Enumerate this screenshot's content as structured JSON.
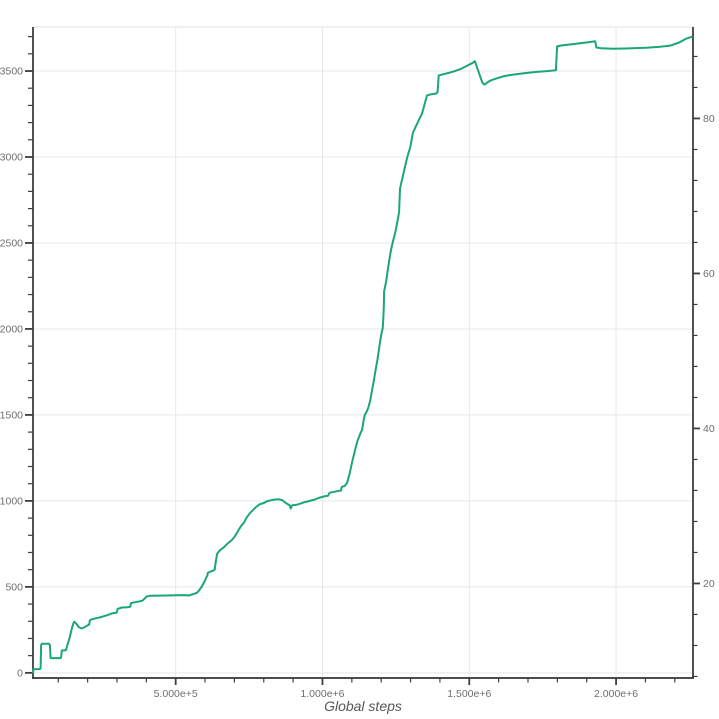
{
  "chart_data": {
    "type": "line",
    "title": "",
    "xlabel": "Global steps",
    "legend": "none",
    "grid": "major-on",
    "colors": {
      "line": "#1aa679",
      "grid": "#e8e8e8",
      "plot_border_top": "#e2e2e2",
      "axis": "#333333",
      "tick": "#3d3d3d",
      "tick_label": "#6e6e6e",
      "axis_title": "#565656",
      "background": "#ffffff"
    },
    "x_axis": {
      "range": [
        14000,
        2262000
      ],
      "major_ticks": [
        500000,
        1000000,
        1500000,
        2000000
      ],
      "major_tick_labels": [
        "5.000e+5",
        "1.000e+6",
        "1.500e+6",
        "2.000e+6"
      ],
      "minor_tick_interval": 100000
    },
    "y_axis_left": {
      "range": [
        -30,
        3756
      ],
      "major_ticks": [
        0,
        500,
        1000,
        1500,
        2000,
        2500,
        3000,
        3500
      ],
      "major_tick_labels": [
        "0",
        "500",
        "1000",
        "1500",
        "2000",
        "2500",
        "3000",
        "3500"
      ],
      "minor_tick_interval": 100,
      "gridlines": true
    },
    "y_axis_right": {
      "range": [
        7.8,
        91.8
      ],
      "major_ticks": [
        20,
        40,
        60,
        80
      ],
      "major_tick_labels": [
        "20",
        "40",
        "60",
        "80"
      ],
      "minor_tick_interval": 4,
      "gridlines": false
    },
    "series": [
      {
        "axis": "left",
        "color": "#1aa679",
        "points": [
          [
            14000,
            2
          ],
          [
            16000,
            22
          ],
          [
            37000,
            22
          ],
          [
            40000,
            28
          ],
          [
            41500,
            160
          ],
          [
            44000,
            169
          ],
          [
            69000,
            169
          ],
          [
            71500,
            160
          ],
          [
            74000,
            86
          ],
          [
            108000,
            86
          ],
          [
            110000,
            95
          ],
          [
            112000,
            130
          ],
          [
            126000,
            131
          ],
          [
            132000,
            165
          ],
          [
            139000,
            205
          ],
          [
            147000,
            262
          ],
          [
            152000,
            290
          ],
          [
            155000,
            298
          ],
          [
            162000,
            284
          ],
          [
            170000,
            266
          ],
          [
            180000,
            258
          ],
          [
            190000,
            266
          ],
          [
            200000,
            276
          ],
          [
            205000,
            280
          ],
          [
            208000,
            308
          ],
          [
            222000,
            315
          ],
          [
            236000,
            320
          ],
          [
            251000,
            327
          ],
          [
            268000,
            336
          ],
          [
            285000,
            347
          ],
          [
            299000,
            350
          ],
          [
            302000,
            372
          ],
          [
            317000,
            380
          ],
          [
            336000,
            382
          ],
          [
            345000,
            384
          ],
          [
            347500,
            405
          ],
          [
            362000,
            411
          ],
          [
            386000,
            419
          ],
          [
            394000,
            432
          ],
          [
            401000,
            444
          ],
          [
            411000,
            448
          ],
          [
            445000,
            449
          ],
          [
            470000,
            450
          ],
          [
            500000,
            451
          ],
          [
            531000,
            452
          ],
          [
            545000,
            450
          ],
          [
            557000,
            457
          ],
          [
            572000,
            465
          ],
          [
            580000,
            480
          ],
          [
            589000,
            502
          ],
          [
            598000,
            532
          ],
          [
            606000,
            560
          ],
          [
            608000,
            566
          ],
          [
            609500,
            581
          ],
          [
            620000,
            590
          ],
          [
            633000,
            599
          ],
          [
            636000,
            640
          ],
          [
            641000,
            692
          ],
          [
            652000,
            715
          ],
          [
            664000,
            730
          ],
          [
            677000,
            753
          ],
          [
            690000,
            770
          ],
          [
            700000,
            790
          ],
          [
            708000,
            812
          ],
          [
            714000,
            830
          ],
          [
            722000,
            852
          ],
          [
            733000,
            875
          ],
          [
            740000,
            898
          ],
          [
            752000,
            928
          ],
          [
            764000,
            948
          ],
          [
            775000,
            966
          ],
          [
            786000,
            980
          ],
          [
            800000,
            988
          ],
          [
            812000,
            998
          ],
          [
            830000,
            1006
          ],
          [
            848000,
            1010
          ],
          [
            862000,
            1005
          ],
          [
            875000,
            988
          ],
          [
            888000,
            975
          ],
          [
            892000,
            956
          ],
          [
            896000,
            974
          ],
          [
            912000,
            977
          ],
          [
            925000,
            984
          ],
          [
            940000,
            993
          ],
          [
            957000,
            1000
          ],
          [
            974000,
            1008
          ],
          [
            991000,
            1019
          ],
          [
            1008000,
            1027
          ],
          [
            1019000,
            1030
          ],
          [
            1024000,
            1047
          ],
          [
            1040000,
            1053
          ],
          [
            1058000,
            1059
          ],
          [
            1063000,
            1060
          ],
          [
            1066000,
            1082
          ],
          [
            1076000,
            1087
          ],
          [
            1084000,
            1105
          ],
          [
            1092000,
            1155
          ],
          [
            1101000,
            1225
          ],
          [
            1110000,
            1290
          ],
          [
            1119000,
            1348
          ],
          [
            1129000,
            1393
          ],
          [
            1135000,
            1413
          ],
          [
            1140000,
            1468
          ],
          [
            1144000,
            1500
          ],
          [
            1151000,
            1520
          ],
          [
            1157000,
            1547
          ],
          [
            1163000,
            1586
          ],
          [
            1169000,
            1645
          ],
          [
            1175000,
            1702
          ],
          [
            1181000,
            1762
          ],
          [
            1187000,
            1820
          ],
          [
            1192000,
            1878
          ],
          [
            1197000,
            1935
          ],
          [
            1202000,
            1983
          ],
          [
            1205000,
            2003
          ],
          [
            1207000,
            2060
          ],
          [
            1209000,
            2125
          ],
          [
            1210000,
            2218
          ],
          [
            1217000,
            2278
          ],
          [
            1227000,
            2395
          ],
          [
            1234000,
            2465
          ],
          [
            1240000,
            2508
          ],
          [
            1248000,
            2562
          ],
          [
            1256000,
            2630
          ],
          [
            1261000,
            2680
          ],
          [
            1264000,
            2815
          ],
          [
            1269000,
            2855
          ],
          [
            1279000,
            2928
          ],
          [
            1289000,
            3000
          ],
          [
            1299000,
            3058
          ],
          [
            1308000,
            3140
          ],
          [
            1318000,
            3178
          ],
          [
            1329000,
            3218
          ],
          [
            1339000,
            3252
          ],
          [
            1350000,
            3320
          ],
          [
            1356000,
            3358
          ],
          [
            1368000,
            3364
          ],
          [
            1388000,
            3369
          ],
          [
            1392000,
            3378
          ],
          [
            1396000,
            3474
          ],
          [
            1410000,
            3481
          ],
          [
            1430000,
            3489
          ],
          [
            1450000,
            3499
          ],
          [
            1470000,
            3511
          ],
          [
            1491000,
            3529
          ],
          [
            1512000,
            3548
          ],
          [
            1519000,
            3557
          ],
          [
            1529000,
            3508
          ],
          [
            1545000,
            3430
          ],
          [
            1552000,
            3421
          ],
          [
            1565000,
            3438
          ],
          [
            1576000,
            3447
          ],
          [
            1598000,
            3460
          ],
          [
            1620000,
            3471
          ],
          [
            1650000,
            3479
          ],
          [
            1690000,
            3488
          ],
          [
            1730000,
            3495
          ],
          [
            1770000,
            3500
          ],
          [
            1795000,
            3504
          ],
          [
            1799000,
            3643
          ],
          [
            1815000,
            3649
          ],
          [
            1850000,
            3656
          ],
          [
            1884000,
            3663
          ],
          [
            1908000,
            3668
          ],
          [
            1929000,
            3673
          ],
          [
            1933000,
            3637
          ],
          [
            1950000,
            3632
          ],
          [
            1990000,
            3630
          ],
          [
            2030000,
            3631
          ],
          [
            2070000,
            3633
          ],
          [
            2110000,
            3636
          ],
          [
            2150000,
            3641
          ],
          [
            2185000,
            3648
          ],
          [
            2215000,
            3666
          ],
          [
            2238000,
            3688
          ],
          [
            2258000,
            3699
          ]
        ]
      }
    ]
  }
}
